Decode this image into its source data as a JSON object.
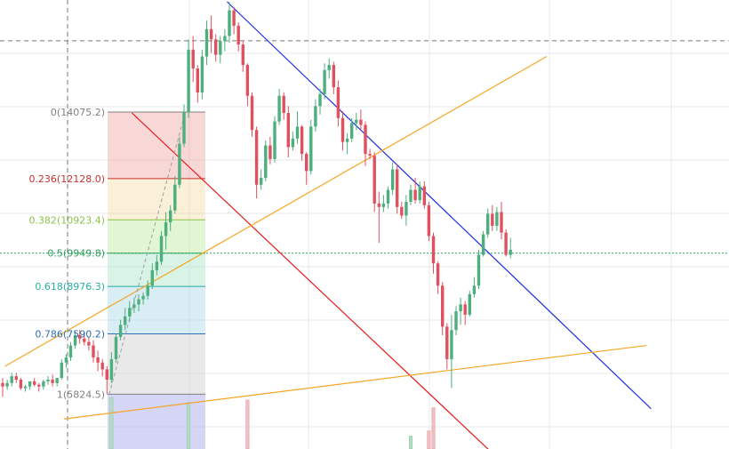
{
  "chart_data": {
    "type": "candlestick",
    "title": "",
    "xlabel": "",
    "ylabel": "",
    "ylim": [
      4300,
      17300
    ],
    "grid": true,
    "colors": {
      "up": "#4caf7d",
      "down": "#e0505e",
      "volume_up": "#b6dcc6",
      "volume_down": "#efc0c4",
      "grid": "#e6eaee",
      "last_price_line": "#26a65b",
      "crosshair": "#777777",
      "descending_channel": "#1f2fe0",
      "lower_channel_line": "#e51a1a",
      "ascending_lines": "#f5a623",
      "fib_trend": "#9aa0a6"
    },
    "last_price": 9949.8,
    "crosshair_price": 16160,
    "candles": [
      {
        "o": 6150,
        "h": 6300,
        "l": 5750,
        "c": 6050
      },
      {
        "o": 6050,
        "h": 6250,
        "l": 5950,
        "c": 6150
      },
      {
        "o": 6150,
        "h": 6450,
        "l": 6050,
        "c": 6350
      },
      {
        "o": 6350,
        "h": 6450,
        "l": 6150,
        "c": 6250
      },
      {
        "o": 6250,
        "h": 6300,
        "l": 5950,
        "c": 6000
      },
      {
        "o": 6000,
        "h": 6100,
        "l": 5900,
        "c": 6050
      },
      {
        "o": 6050,
        "h": 6200,
        "l": 5950,
        "c": 6200
      },
      {
        "o": 6200,
        "h": 6300,
        "l": 6050,
        "c": 6100
      },
      {
        "o": 6100,
        "h": 6150,
        "l": 5900,
        "c": 6050
      },
      {
        "o": 6050,
        "h": 6250,
        "l": 5950,
        "c": 6200
      },
      {
        "o": 6200,
        "h": 6350,
        "l": 6100,
        "c": 6250
      },
      {
        "o": 6250,
        "h": 6400,
        "l": 6050,
        "c": 6150
      },
      {
        "o": 6150,
        "h": 6300,
        "l": 6050,
        "c": 6300
      },
      {
        "o": 6300,
        "h": 6850,
        "l": 6250,
        "c": 6750
      },
      {
        "o": 6750,
        "h": 7000,
        "l": 6600,
        "c": 6900
      },
      {
        "o": 6900,
        "h": 7350,
        "l": 6800,
        "c": 7250
      },
      {
        "o": 7250,
        "h": 7650,
        "l": 7150,
        "c": 7550
      },
      {
        "o": 7550,
        "h": 7700,
        "l": 7300,
        "c": 7450
      },
      {
        "o": 7450,
        "h": 7650,
        "l": 7250,
        "c": 7350
      },
      {
        "o": 7350,
        "h": 7500,
        "l": 7100,
        "c": 7250
      },
      {
        "o": 7250,
        "h": 7400,
        "l": 6750,
        "c": 6900
      },
      {
        "o": 6900,
        "h": 7100,
        "l": 6500,
        "c": 6750
      },
      {
        "o": 6750,
        "h": 6850,
        "l": 6350,
        "c": 6550
      },
      {
        "o": 6550,
        "h": 6650,
        "l": 5824.5,
        "c": 6250
      },
      {
        "o": 6250,
        "h": 7050,
        "l": 6150,
        "c": 6850
      },
      {
        "o": 6850,
        "h": 7600,
        "l": 6750,
        "c": 7500
      },
      {
        "o": 7500,
        "h": 8000,
        "l": 7400,
        "c": 7850
      },
      {
        "o": 7850,
        "h": 8350,
        "l": 7700,
        "c": 8100
      },
      {
        "o": 8100,
        "h": 8550,
        "l": 7950,
        "c": 8350
      },
      {
        "o": 8350,
        "h": 8650,
        "l": 8200,
        "c": 8450
      },
      {
        "o": 8450,
        "h": 8750,
        "l": 8250,
        "c": 8600
      },
      {
        "o": 8600,
        "h": 8800,
        "l": 8450,
        "c": 8700
      },
      {
        "o": 8700,
        "h": 9150,
        "l": 8600,
        "c": 9000
      },
      {
        "o": 9000,
        "h": 9650,
        "l": 8900,
        "c": 9450
      },
      {
        "o": 9450,
        "h": 9900,
        "l": 9300,
        "c": 9700
      },
      {
        "o": 9700,
        "h": 10600,
        "l": 9600,
        "c": 10450
      },
      {
        "o": 10450,
        "h": 11150,
        "l": 10050,
        "c": 10850
      },
      {
        "o": 10850,
        "h": 11350,
        "l": 10600,
        "c": 11200
      },
      {
        "o": 11200,
        "h": 12200,
        "l": 11100,
        "c": 11950
      },
      {
        "o": 11950,
        "h": 13350,
        "l": 11850,
        "c": 13150
      },
      {
        "o": 13150,
        "h": 14300,
        "l": 13050,
        "c": 14075.2
      },
      {
        "o": 14075.2,
        "h": 16200,
        "l": 13900,
        "c": 15900
      },
      {
        "o": 15900,
        "h": 16300,
        "l": 14950,
        "c": 15350
      },
      {
        "o": 15350,
        "h": 15450,
        "l": 14350,
        "c": 14650
      },
      {
        "o": 14650,
        "h": 15900,
        "l": 14450,
        "c": 15700
      },
      {
        "o": 15700,
        "h": 16750,
        "l": 15450,
        "c": 16500
      },
      {
        "o": 16500,
        "h": 16900,
        "l": 15800,
        "c": 16200
      },
      {
        "o": 16200,
        "h": 16350,
        "l": 15550,
        "c": 15750
      },
      {
        "o": 15750,
        "h": 16300,
        "l": 15500,
        "c": 16150
      },
      {
        "o": 16150,
        "h": 16500,
        "l": 15850,
        "c": 16300
      },
      {
        "o": 16300,
        "h": 17300,
        "l": 16100,
        "c": 17050
      },
      {
        "o": 17050,
        "h": 17150,
        "l": 16350,
        "c": 16600
      },
      {
        "o": 16600,
        "h": 16700,
        "l": 15850,
        "c": 16050
      },
      {
        "o": 16050,
        "h": 16150,
        "l": 15250,
        "c": 15450
      },
      {
        "o": 15450,
        "h": 15500,
        "l": 14250,
        "c": 14550
      },
      {
        "o": 14550,
        "h": 14650,
        "l": 13350,
        "c": 13550
      },
      {
        "o": 13550,
        "h": 13650,
        "l": 11550,
        "c": 11950
      },
      {
        "o": 11950,
        "h": 12400,
        "l": 11800,
        "c": 12150
      },
      {
        "o": 12150,
        "h": 13250,
        "l": 12050,
        "c": 13100
      },
      {
        "o": 13100,
        "h": 13350,
        "l": 12550,
        "c": 12700
      },
      {
        "o": 12700,
        "h": 13950,
        "l": 12600,
        "c": 13800
      },
      {
        "o": 13800,
        "h": 14750,
        "l": 13700,
        "c": 14550
      },
      {
        "o": 14550,
        "h": 14650,
        "l": 13850,
        "c": 14050
      },
      {
        "o": 14050,
        "h": 14250,
        "l": 12750,
        "c": 13050
      },
      {
        "o": 13050,
        "h": 13500,
        "l": 12950,
        "c": 13300
      },
      {
        "o": 13300,
        "h": 14100,
        "l": 13150,
        "c": 13650
      },
      {
        "o": 13650,
        "h": 13700,
        "l": 12650,
        "c": 12850
      },
      {
        "o": 12850,
        "h": 12900,
        "l": 11950,
        "c": 12350
      },
      {
        "o": 12350,
        "h": 13850,
        "l": 12250,
        "c": 13650
      },
      {
        "o": 13650,
        "h": 14450,
        "l": 13500,
        "c": 14250
      },
      {
        "o": 14250,
        "h": 14750,
        "l": 14000,
        "c": 14600
      },
      {
        "o": 14600,
        "h": 15500,
        "l": 14450,
        "c": 15300
      },
      {
        "o": 15300,
        "h": 15650,
        "l": 15050,
        "c": 15450
      },
      {
        "o": 15450,
        "h": 15550,
        "l": 14600,
        "c": 14800
      },
      {
        "o": 14800,
        "h": 15000,
        "l": 13650,
        "c": 13900
      },
      {
        "o": 13900,
        "h": 14100,
        "l": 12950,
        "c": 13200
      },
      {
        "o": 13200,
        "h": 13450,
        "l": 12850,
        "c": 13300
      },
      {
        "o": 13300,
        "h": 13900,
        "l": 13200,
        "c": 13750
      },
      {
        "o": 13750,
        "h": 14050,
        "l": 13550,
        "c": 13850
      },
      {
        "o": 13850,
        "h": 14150,
        "l": 13550,
        "c": 13700
      },
      {
        "o": 13700,
        "h": 13800,
        "l": 12500,
        "c": 12850
      },
      {
        "o": 12850,
        "h": 13000,
        "l": 12700,
        "c": 12800
      },
      {
        "o": 12800,
        "h": 12900,
        "l": 11150,
        "c": 11400
      },
      {
        "o": 11400,
        "h": 11750,
        "l": 10250,
        "c": 11300
      },
      {
        "o": 11300,
        "h": 11650,
        "l": 11150,
        "c": 11400
      },
      {
        "o": 11400,
        "h": 11900,
        "l": 11250,
        "c": 11800
      },
      {
        "o": 11800,
        "h": 12600,
        "l": 11650,
        "c": 12400
      },
      {
        "o": 12400,
        "h": 12550,
        "l": 11100,
        "c": 11300
      },
      {
        "o": 11300,
        "h": 11450,
        "l": 10950,
        "c": 11050
      },
      {
        "o": 11050,
        "h": 11650,
        "l": 10750,
        "c": 11450
      },
      {
        "o": 11450,
        "h": 11950,
        "l": 11350,
        "c": 11800
      },
      {
        "o": 11800,
        "h": 12150,
        "l": 11400,
        "c": 11500
      },
      {
        "o": 11500,
        "h": 12050,
        "l": 11400,
        "c": 11900
      },
      {
        "o": 11900,
        "h": 12050,
        "l": 11250,
        "c": 11350
      },
      {
        "o": 11350,
        "h": 11450,
        "l": 10300,
        "c": 10450
      },
      {
        "o": 10450,
        "h": 10550,
        "l": 9350,
        "c": 9650
      },
      {
        "o": 9650,
        "h": 9700,
        "l": 8750,
        "c": 9000
      },
      {
        "o": 9000,
        "h": 9100,
        "l": 7550,
        "c": 7800
      },
      {
        "o": 7800,
        "h": 7900,
        "l": 6550,
        "c": 6850
      },
      {
        "o": 6850,
        "h": 8150,
        "l": 6000,
        "c": 7700
      },
      {
        "o": 7700,
        "h": 8400,
        "l": 7550,
        "c": 8250
      },
      {
        "o": 8250,
        "h": 8650,
        "l": 7850,
        "c": 8450
      },
      {
        "o": 8450,
        "h": 8550,
        "l": 7850,
        "c": 8150
      },
      {
        "o": 8150,
        "h": 8850,
        "l": 8100,
        "c": 8750
      },
      {
        "o": 8750,
        "h": 9250,
        "l": 8650,
        "c": 9000
      },
      {
        "o": 9000,
        "h": 10050,
        "l": 8900,
        "c": 9900
      },
      {
        "o": 9900,
        "h": 10600,
        "l": 9850,
        "c": 10500
      },
      {
        "o": 10500,
        "h": 11250,
        "l": 10400,
        "c": 11100
      },
      {
        "o": 11100,
        "h": 11350,
        "l": 10600,
        "c": 10750
      },
      {
        "o": 10750,
        "h": 11300,
        "l": 10600,
        "c": 11150
      },
      {
        "o": 11150,
        "h": 11450,
        "l": 10350,
        "c": 10550
      },
      {
        "o": 10550,
        "h": 10650,
        "l": 9850,
        "c": 9900
      },
      {
        "o": 9900,
        "h": 10400,
        "l": 9800,
        "c": 10050
      }
    ],
    "volume": [
      0,
      0,
      0,
      0,
      0,
      0,
      0,
      0,
      0,
      0,
      0,
      0,
      0,
      0,
      0,
      0,
      0,
      0,
      0,
      0,
      0,
      0,
      0,
      0,
      1.0,
      0,
      0,
      0,
      0,
      0,
      0,
      0,
      0,
      0,
      0,
      0,
      0,
      0,
      0,
      0,
      0,
      0.9,
      0,
      0,
      0,
      0,
      0,
      0,
      0,
      0,
      0,
      0,
      0,
      0,
      0.95,
      0,
      0,
      0,
      0,
      0,
      0,
      0,
      0,
      0,
      0,
      0,
      0,
      0,
      0,
      0,
      0,
      0,
      0,
      0,
      0,
      0,
      0,
      0,
      0,
      0,
      0,
      0,
      0,
      0,
      0,
      0,
      0,
      0,
      0,
      0,
      0.25,
      0,
      0,
      0,
      0.35,
      0.8,
      0,
      0,
      0,
      0,
      0,
      0,
      0,
      0,
      0,
      0,
      0,
      0,
      0,
      0
    ],
    "fibonacci": {
      "high": 14075.2,
      "low": 5824.5,
      "levels": [
        {
          "ratio": 0,
          "label": "0(14075.2)",
          "price": 14075.2,
          "color": "#808080",
          "fill": "rgba(235,140,140,0.35)"
        },
        {
          "ratio": 0.236,
          "label": "0.236(12128.0)",
          "price": 12128.0,
          "color": "#c9302c",
          "fill": "rgba(240,210,140,0.35)"
        },
        {
          "ratio": 0.382,
          "label": "0.382(10923.4)",
          "price": 10923.4,
          "color": "#8bc34a",
          "fill": "rgba(190,235,160,0.45)"
        },
        {
          "ratio": 0.5,
          "label": "0.5(9949.8)",
          "price": 9949.8,
          "color": "#2e9e5b",
          "fill": "rgba(170,230,200,0.45)"
        },
        {
          "ratio": 0.618,
          "label": "0.618(8976.3)",
          "price": 8976.3,
          "color": "#26b0a0",
          "fill": "rgba(170,215,230,0.45)"
        },
        {
          "ratio": 0.786,
          "label": "0.786(7590.2)",
          "price": 7590.2,
          "color": "#2f6fb5",
          "fill": "rgba(215,215,215,0.55)"
        },
        {
          "ratio": 1,
          "label": "1(5824.5)",
          "price": 5824.5,
          "color": "#808080",
          "fill": "rgba(185,185,240,0.6)"
        }
      ]
    },
    "trendlines": [
      {
        "name_hint": "descending channel upper",
        "color_key": "descending_channel",
        "from": {
          "bar": 49.5,
          "price": 17300
        },
        "to": {
          "bar": 143,
          "price": 5400
        }
      },
      {
        "name_hint": "descending channel lower",
        "color_key": "lower_channel_line",
        "from": {
          "bar": 28.5,
          "price": 14050
        },
        "to": {
          "bar": 112,
          "price": 3600
        }
      },
      {
        "name_hint": "ascending support upper",
        "color_key": "ascending_lines",
        "from": {
          "bar": 0.5,
          "price": 6640
        },
        "to": {
          "bar": 120,
          "price": 15700
        }
      },
      {
        "name_hint": "ascending support lower",
        "color_key": "ascending_lines",
        "from": {
          "bar": 13.5,
          "price": 5100
        },
        "to": {
          "bar": 142,
          "price": 7250
        }
      },
      {
        "name_hint": "fib trend line",
        "color_key": "fib_trend",
        "from": {
          "bar": 23.5,
          "price": 5824.5
        },
        "to": {
          "bar": 40.3,
          "price": 14075.2
        }
      }
    ]
  }
}
